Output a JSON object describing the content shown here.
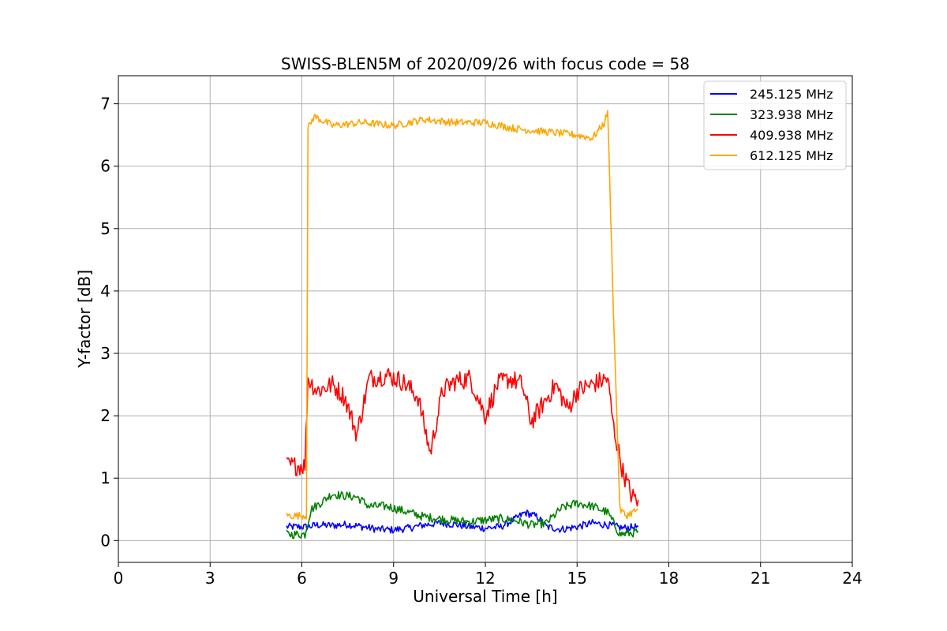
{
  "chart_data": {
    "type": "line",
    "title": "SWISS-BLEN5M of 2020/09/26 with focus code = 58",
    "xlabel": "Universal Time [h]",
    "ylabel": "Y-factor [dB]",
    "xlim": [
      0,
      24
    ],
    "ylim": [
      -0.35,
      7.45
    ],
    "xticks": [
      0,
      3,
      6,
      9,
      12,
      15,
      18,
      21,
      24
    ],
    "yticks": [
      0,
      1,
      2,
      3,
      4,
      5,
      6,
      7
    ],
    "grid": true,
    "legend_position": "top-right",
    "series": [
      {
        "name": "245.125 MHz",
        "color": "#0000ff",
        "x": [
          5.5,
          6.2,
          6.5,
          7.0,
          7.5,
          8.0,
          8.5,
          9.0,
          9.5,
          10.0,
          10.5,
          11.0,
          11.5,
          12.0,
          12.5,
          13.0,
          13.3,
          13.7,
          14.0,
          14.5,
          15.0,
          15.5,
          16.0,
          16.5,
          17.0
        ],
        "y": [
          0.22,
          0.22,
          0.25,
          0.24,
          0.26,
          0.22,
          0.18,
          0.17,
          0.2,
          0.25,
          0.28,
          0.26,
          0.22,
          0.2,
          0.22,
          0.35,
          0.45,
          0.38,
          0.22,
          0.18,
          0.22,
          0.28,
          0.25,
          0.2,
          0.22
        ],
        "noise": 0.06
      },
      {
        "name": "323.938 MHz",
        "color": "#008000",
        "x": [
          5.5,
          6.1,
          6.3,
          6.6,
          7.0,
          7.3,
          7.8,
          8.2,
          8.8,
          9.5,
          10.0,
          10.5,
          11.0,
          11.5,
          12.0,
          12.5,
          13.0,
          13.5,
          14.0,
          14.5,
          15.0,
          15.5,
          16.0,
          16.4,
          16.8,
          17.0
        ],
        "y": [
          0.1,
          0.1,
          0.5,
          0.6,
          0.75,
          0.72,
          0.7,
          0.55,
          0.55,
          0.45,
          0.38,
          0.35,
          0.32,
          0.3,
          0.33,
          0.35,
          0.32,
          0.25,
          0.28,
          0.52,
          0.6,
          0.55,
          0.45,
          0.1,
          0.12,
          0.15
        ],
        "noise": 0.07
      },
      {
        "name": "409.938 MHz",
        "color": "#ff0000",
        "x": [
          5.5,
          6.1,
          6.2,
          6.5,
          7.0,
          7.4,
          7.8,
          8.2,
          8.8,
          9.3,
          9.8,
          10.2,
          10.6,
          11.0,
          11.5,
          12.0,
          12.4,
          12.8,
          13.2,
          13.5,
          13.9,
          14.3,
          14.7,
          15.0,
          15.5,
          16.0,
          16.2,
          16.5,
          16.8,
          17.0
        ],
        "y": [
          1.2,
          1.2,
          2.6,
          2.4,
          2.5,
          2.3,
          1.7,
          2.6,
          2.65,
          2.55,
          2.3,
          1.4,
          2.4,
          2.55,
          2.6,
          2.0,
          2.5,
          2.6,
          2.5,
          1.9,
          2.2,
          2.5,
          2.1,
          2.4,
          2.5,
          2.6,
          1.8,
          1.1,
          0.7,
          0.65
        ],
        "noise": 0.16
      },
      {
        "name": "612.125 MHz",
        "color": "#ffa500",
        "x": [
          5.5,
          6.15,
          6.2,
          6.4,
          7.0,
          8.0,
          9.0,
          10.0,
          11.0,
          12.0,
          13.0,
          14.0,
          15.0,
          15.5,
          15.9,
          16.0,
          16.2,
          16.4,
          16.6,
          17.0
        ],
        "y": [
          0.4,
          0.4,
          6.6,
          6.8,
          6.65,
          6.7,
          6.65,
          6.75,
          6.7,
          6.7,
          6.6,
          6.55,
          6.5,
          6.45,
          6.7,
          6.9,
          3.5,
          0.5,
          0.4,
          0.5
        ],
        "noise": 0.06
      }
    ]
  }
}
